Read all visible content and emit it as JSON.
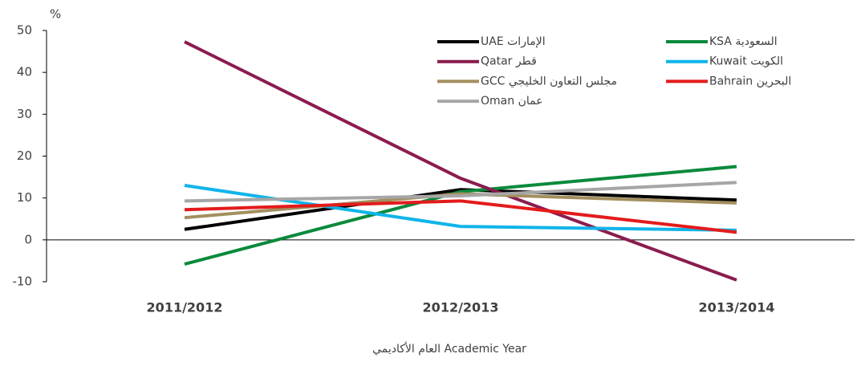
{
  "chart_data": {
    "type": "line",
    "y_unit": "%",
    "x_label": "العام الأكاديمي  Academic Year",
    "categories": [
      "2011/2012",
      "2012/2013",
      "2013/2014"
    ],
    "series": [
      {
        "name": "UAE الإمارات",
        "color": "#000000",
        "values": [
          2.5,
          12,
          9.5
        ]
      },
      {
        "name": "KSA السعودية",
        "color": "#0a8a3c",
        "values": [
          -5.8,
          11.5,
          17.5
        ]
      },
      {
        "name": "Qatar قطر",
        "color": "#8b1c4e",
        "values": [
          47.3,
          14.7,
          -9.6
        ]
      },
      {
        "name": "Kuwait الكويت",
        "color": "#10b4ea",
        "values": [
          13,
          3.2,
          2.3
        ]
      },
      {
        "name": "GCC مجلس التعاون الخليجي",
        "color": "#a38f5e",
        "values": [
          5.3,
          11,
          8.8
        ]
      },
      {
        "name": "Bahrain البحرين",
        "color": "#e31b1b",
        "values": [
          7.2,
          9.3,
          1.8
        ]
      },
      {
        "name": "Oman عمان",
        "color": "#a6a6a6",
        "values": [
          9.3,
          10.5,
          13.7
        ]
      }
    ],
    "ylim": [
      -10,
      50
    ],
    "yticks": [
      -10,
      0,
      10,
      20,
      30,
      40,
      50
    ],
    "legend": "top-right"
  }
}
